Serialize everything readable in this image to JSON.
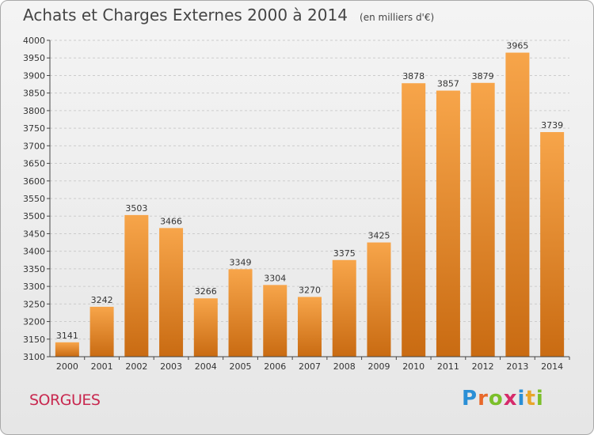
{
  "header": {
    "title": "Achats et Charges Externes 2000 à 2014",
    "unit": "(en milliers d'€)"
  },
  "footer": {
    "town": "SORGUES",
    "brand_letters": [
      "P",
      "r",
      "o",
      "x",
      "i",
      "t",
      "i"
    ],
    "brand_colors": [
      "#2a8fd6",
      "#e8682a",
      "#7bbf2a",
      "#d62a6a",
      "#2a8fd6",
      "#e8a52a",
      "#7bbf2a"
    ]
  },
  "colors": {
    "bar_light": "#f7a54a",
    "bar_dark": "#c96b12",
    "grid": "#cccccc",
    "axis": "#444444"
  },
  "chart_data": {
    "type": "bar",
    "title": "Achats et Charges Externes 2000 à 2014",
    "subtitle": "(en milliers d'€)",
    "categories": [
      "2000",
      "2001",
      "2002",
      "2003",
      "2004",
      "2005",
      "2006",
      "2007",
      "2008",
      "2009",
      "2010",
      "2011",
      "2012",
      "2013",
      "2014"
    ],
    "values": [
      3141,
      3242,
      3503,
      3466,
      3266,
      3349,
      3304,
      3270,
      3375,
      3425,
      3878,
      3857,
      3879,
      3965,
      3739
    ],
    "ylim": [
      3100,
      4000
    ],
    "ytick_step": 50,
    "grid": true,
    "xlabel": "",
    "ylabel": ""
  }
}
